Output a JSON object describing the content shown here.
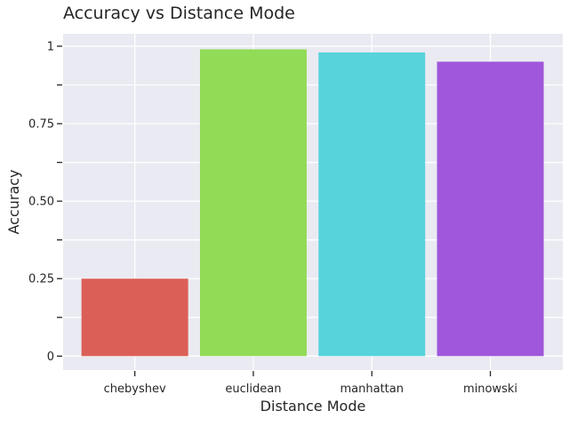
{
  "chart_data": {
    "type": "bar",
    "title": "Accuracy vs Distance Mode",
    "xlabel": "Distance Mode",
    "ylabel": "Accuracy",
    "categories": [
      "chebyshev",
      "euclidean",
      "manhattan",
      "minowski"
    ],
    "values": [
      0.25,
      0.99,
      0.98,
      0.95
    ],
    "colors": [
      "#db5f57",
      "#91db57",
      "#57d3db",
      "#a057db"
    ],
    "ylim": [
      -0.045,
      1.04
    ],
    "yticks": [
      0,
      0.125,
      0.25,
      0.375,
      0.5,
      0.625,
      0.75,
      0.875,
      1
    ],
    "ytick_labels": [
      "0",
      "",
      "0.25",
      "",
      "0.50",
      "",
      "0.75",
      "",
      "1"
    ],
    "grid": true,
    "background": "#eaeaf2",
    "legend": "none"
  }
}
